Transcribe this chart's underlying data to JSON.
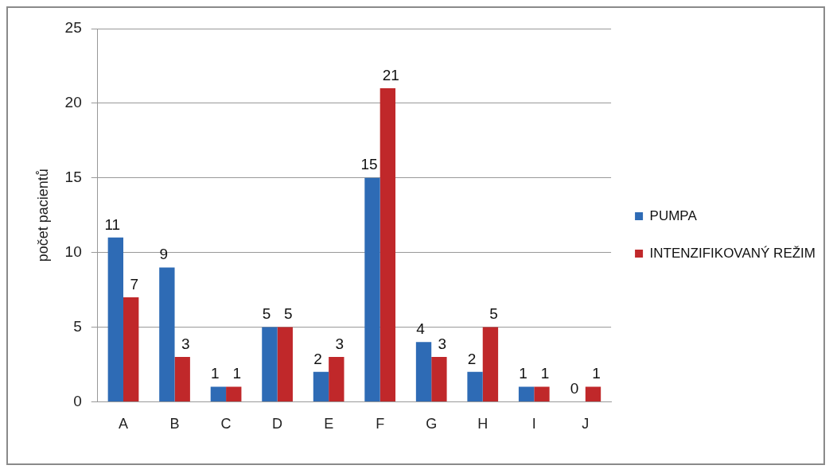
{
  "chart_data": {
    "type": "bar",
    "ylabel": "počet pacientů",
    "categories": [
      "A",
      "B",
      "C",
      "D",
      "E",
      "F",
      "G",
      "H",
      "I",
      "J"
    ],
    "series": [
      {
        "name": "PUMPA",
        "color": "#2e6bb5",
        "values": [
          11,
          9,
          1,
          5,
          2,
          15,
          4,
          2,
          1,
          0
        ]
      },
      {
        "name": "INTENZIFIKOVANÝ REŽIM",
        "color": "#c0282a",
        "values": [
          7,
          3,
          1,
          5,
          3,
          21,
          3,
          5,
          1,
          1
        ]
      }
    ],
    "ylim": [
      0,
      25
    ],
    "yticks": [
      0,
      5,
      10,
      15,
      20,
      25
    ],
    "grid": "y",
    "legend": "right",
    "data_labels": true
  }
}
